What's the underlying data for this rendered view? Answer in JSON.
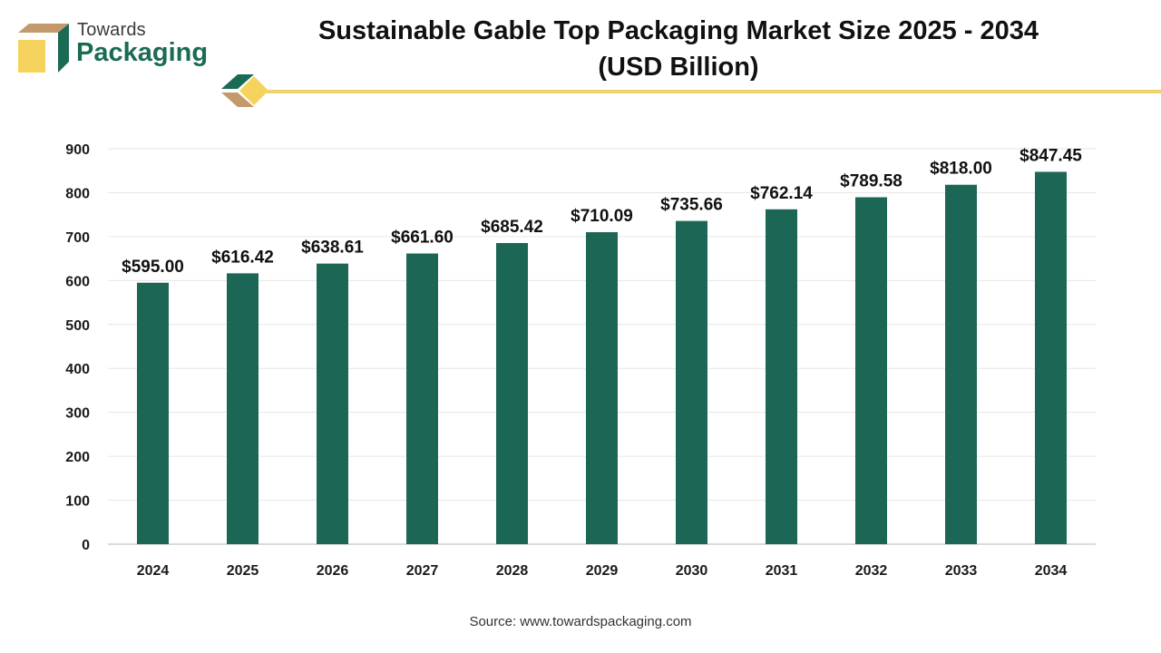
{
  "brand": {
    "line1": "Towards",
    "line2": "Packaging"
  },
  "header": {
    "title_line1": "Sustainable Gable Top Packaging Market Size 2025 - 2034",
    "title_line2": "(USD Billion)"
  },
  "colors": {
    "bar": "#1b6655",
    "accent_line": "#f2d26a",
    "brand_green": "#1a6b54",
    "brand_tan": "#c49a6c",
    "brand_yellow": "#f6d35c"
  },
  "chart_data": {
    "type": "bar",
    "categories": [
      "2024",
      "2025",
      "2026",
      "2027",
      "2028",
      "2029",
      "2030",
      "2031",
      "2032",
      "2033",
      "2034"
    ],
    "values": [
      595.0,
      616.42,
      638.61,
      661.6,
      685.42,
      710.09,
      735.66,
      762.14,
      789.58,
      818.0,
      847.45
    ],
    "data_labels": [
      "$595.00",
      "$616.42",
      "$638.61",
      "$661.60",
      "$685.42",
      "$710.09",
      "$735.66",
      "$762.14",
      "$789.58",
      "$818.00",
      "$847.45"
    ],
    "ylim": [
      0,
      900
    ],
    "yticks": [
      0,
      100,
      200,
      300,
      400,
      500,
      600,
      700,
      800,
      900
    ],
    "grid": true,
    "legend": "none"
  },
  "source": "Source: www.towardspackaging.com"
}
